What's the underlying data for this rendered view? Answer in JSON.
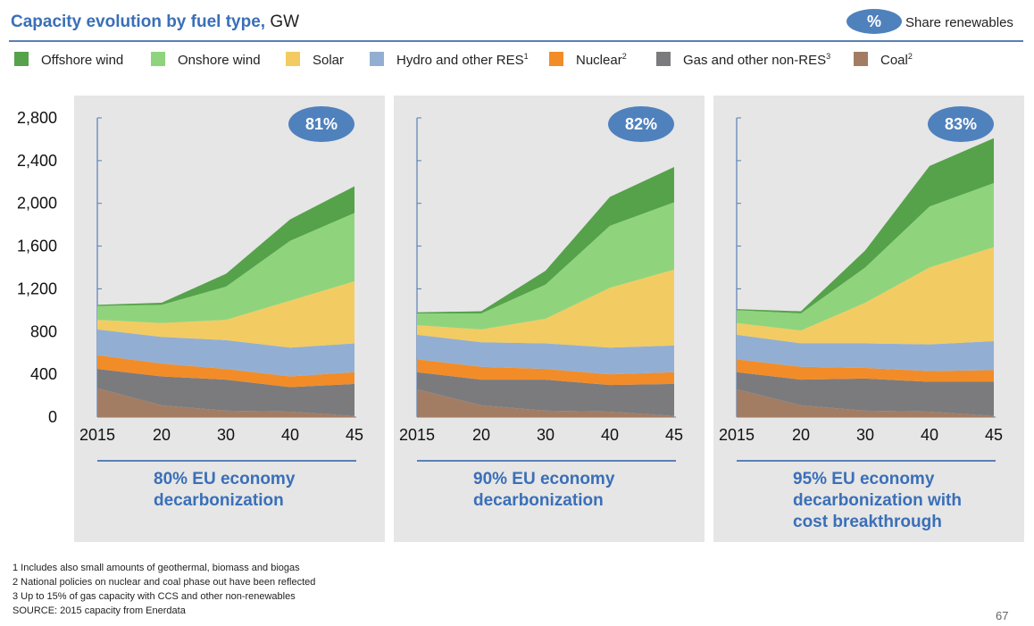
{
  "header": {
    "title_bold": "Capacity evolution by fuel type,",
    "title_unit": "GW",
    "badge": "%",
    "badge_label": "Share renewables"
  },
  "legend": [
    {
      "label": "Offshore wind",
      "sup": "",
      "color": "#55a24a"
    },
    {
      "label": "Onshore wind",
      "sup": "",
      "color": "#8fd47d"
    },
    {
      "label": "Solar",
      "sup": "",
      "color": "#f2cc62"
    },
    {
      "label": "Hydro and other RES",
      "sup": "1",
      "color": "#92afd3"
    },
    {
      "label": "Nuclear",
      "sup": "2",
      "color": "#f28c28"
    },
    {
      "label": "Gas and other non-RES",
      "sup": "3",
      "color": "#7b7b7e"
    },
    {
      "label": "Coal",
      "sup": "2",
      "color": "#a27d64"
    }
  ],
  "chart_data": [
    {
      "type": "area",
      "stacked": true,
      "title_lines": [
        "80% EU economy",
        "decarbonization"
      ],
      "share_renewables": "81%",
      "x": [
        "2015",
        "20",
        "30",
        "40",
        "45"
      ],
      "ylim": [
        0,
        2800
      ],
      "yticks": [
        "0",
        "400",
        "800",
        "1,200",
        "1,600",
        "2,000",
        "2,400",
        "2,800"
      ],
      "series": [
        {
          "name": "Coal",
          "values": [
            270,
            110,
            60,
            50,
            10
          ]
        },
        {
          "name": "Gas and other non-RES",
          "values": [
            180,
            270,
            290,
            230,
            300
          ]
        },
        {
          "name": "Nuclear",
          "values": [
            130,
            120,
            100,
            100,
            110
          ]
        },
        {
          "name": "Hydro and other RES",
          "values": [
            240,
            250,
            270,
            270,
            270
          ]
        },
        {
          "name": "Solar",
          "values": [
            90,
            130,
            190,
            440,
            580
          ]
        },
        {
          "name": "Onshore wind",
          "values": [
            130,
            170,
            310,
            560,
            640
          ]
        },
        {
          "name": "Offshore wind",
          "values": [
            10,
            20,
            120,
            200,
            250
          ]
        }
      ]
    },
    {
      "type": "area",
      "stacked": true,
      "title_lines": [
        "90% EU economy",
        "decarbonization"
      ],
      "share_renewables": "82%",
      "x": [
        "2015",
        "20",
        "30",
        "40",
        "45"
      ],
      "ylim": [
        0,
        2800
      ],
      "yticks": [
        "0",
        "400",
        "800",
        "1,200",
        "1,600",
        "2,000",
        "2,400",
        "2,800"
      ],
      "series": [
        {
          "name": "Coal",
          "values": [
            260,
            110,
            60,
            50,
            10
          ]
        },
        {
          "name": "Gas and other non-RES",
          "values": [
            160,
            240,
            290,
            250,
            300
          ]
        },
        {
          "name": "Nuclear",
          "values": [
            120,
            120,
            100,
            100,
            110
          ]
        },
        {
          "name": "Hydro and other RES",
          "values": [
            230,
            230,
            240,
            250,
            250
          ]
        },
        {
          "name": "Solar",
          "values": [
            90,
            120,
            230,
            560,
            710
          ]
        },
        {
          "name": "Onshore wind",
          "values": [
            110,
            150,
            320,
            580,
            630
          ]
        },
        {
          "name": "Offshore wind",
          "values": [
            10,
            20,
            130,
            270,
            330
          ]
        }
      ]
    },
    {
      "type": "area",
      "stacked": true,
      "title_lines": [
        "95% EU economy",
        "decarbonization with",
        "cost breakthrough"
      ],
      "share_renewables": "83%",
      "x": [
        "2015",
        "20",
        "30",
        "40",
        "45"
      ],
      "ylim": [
        0,
        2800
      ],
      "yticks": [
        "0",
        "400",
        "800",
        "1,200",
        "1,600",
        "2,000",
        "2,400",
        "2,800"
      ],
      "series": [
        {
          "name": "Coal",
          "values": [
            260,
            110,
            60,
            50,
            10
          ]
        },
        {
          "name": "Gas and other non-RES",
          "values": [
            160,
            240,
            300,
            280,
            320
          ]
        },
        {
          "name": "Nuclear",
          "values": [
            120,
            120,
            100,
            100,
            110
          ]
        },
        {
          "name": "Hydro and other RES",
          "values": [
            230,
            220,
            230,
            250,
            270
          ]
        },
        {
          "name": "Solar",
          "values": [
            110,
            120,
            380,
            720,
            880
          ]
        },
        {
          "name": "Onshore wind",
          "values": [
            120,
            160,
            330,
            570,
            600
          ]
        },
        {
          "name": "Offshore wind",
          "values": [
            10,
            20,
            160,
            380,
            420
          ]
        }
      ]
    }
  ],
  "footnotes": [
    "1 Includes also small amounts of geothermal, biomass and biogas",
    "2 National policies on nuclear and coal phase out have been reflected",
    "3 Up to 15% of gas capacity with CCS and other non-renewables",
    "SOURCE: 2015 capacity from Enerdata"
  ],
  "page_number": "67",
  "colors": {
    "accent": "#3a6fb8",
    "badge": "#4f81bd",
    "panel": "#e6e6e6",
    "axis": "#5a7fb5"
  }
}
